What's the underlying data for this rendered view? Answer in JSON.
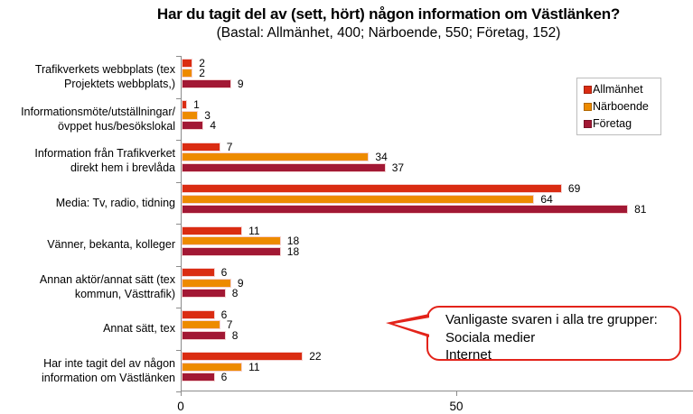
{
  "chart_data": {
    "type": "bar",
    "orientation": "horizontal",
    "title": "Har du tagit del av (sett, hört) någon information om Västlänken?",
    "subtitle": "(Bastal: Allmänhet, 400; Närboende, 550; Företag, 152)",
    "categories": [
      "Trafikverkets webbplats (tex\nProjektets webbplats,)",
      "Informationsmöte/utställningar/\növppet hus/besökslokal",
      "Information från Trafikverket\ndirekt hem i brevlåda",
      "Media: Tv, radio, tidning",
      "Vänner, bekanta, kolleger",
      "Annan aktör/annat sätt (tex\nkommun, Västtrafik)",
      "Annat sätt, tex",
      "Har inte tagit del av någon\ninformation om Västlänken"
    ],
    "series": [
      {
        "name": "Allmänhet",
        "color": "#da2c12",
        "values": [
          2,
          1,
          7,
          69,
          11,
          6,
          6,
          22
        ]
      },
      {
        "name": "Närboende",
        "color": "#ed8b00",
        "values": [
          2,
          3,
          34,
          64,
          18,
          9,
          7,
          11
        ]
      },
      {
        "name": "Företag",
        "color": "#a21834",
        "values": [
          9,
          4,
          37,
          81,
          18,
          8,
          8,
          6
        ]
      }
    ],
    "value_labels": true,
    "x_ticks": [
      0,
      50
    ],
    "xlim": [
      0,
      93
    ],
    "grid": false,
    "legend_position": "right"
  },
  "callout": {
    "text": "Vanligaste svaren i alla tre grupper:\nSociala medier\nInternet",
    "border_color": "#e3231a"
  },
  "axis_color": "#8c8c8c"
}
